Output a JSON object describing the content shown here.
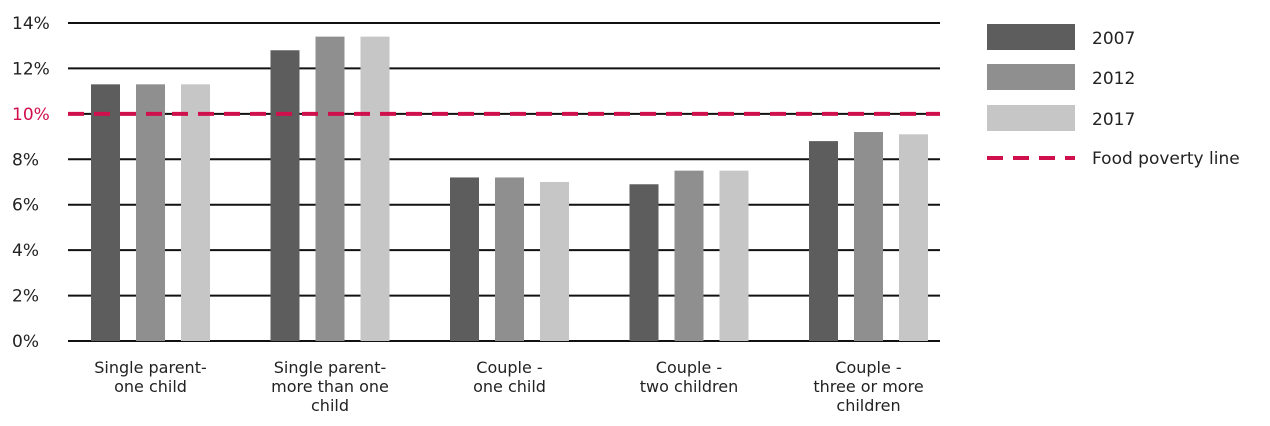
{
  "chart_data": {
    "type": "bar",
    "categories": [
      [
        "Single parent-",
        "one child"
      ],
      [
        "Single parent-",
        "more than one",
        "child"
      ],
      [
        "Couple -",
        "one child"
      ],
      [
        "Couple -",
        "two children"
      ],
      [
        "Couple -",
        "three or more",
        "children"
      ]
    ],
    "series": [
      {
        "name": "2007",
        "color": "#5d5d5d",
        "values": [
          11.3,
          12.8,
          7.2,
          6.9,
          8.8
        ]
      },
      {
        "name": "2012",
        "color": "#8f8f8f",
        "values": [
          11.3,
          13.4,
          7.2,
          7.5,
          9.2
        ]
      },
      {
        "name": "2017",
        "color": "#c6c6c6",
        "values": [
          11.3,
          13.4,
          7.0,
          7.5,
          9.1
        ]
      }
    ],
    "reference_line": {
      "name": "Food poverty line",
      "value": 10,
      "color": "#d0104c",
      "style": "dashed"
    },
    "y_ticks": [
      0,
      2,
      4,
      6,
      8,
      10,
      12,
      14
    ],
    "y_tick_labels": [
      "0%",
      "2%",
      "4%",
      "6%",
      "8%",
      "10%",
      "12%",
      "14%"
    ],
    "highlight_tick": "10%",
    "ylim": [
      0,
      14
    ],
    "grid": true,
    "legend_position": "right",
    "title": "",
    "xlabel": "",
    "ylabel": ""
  }
}
